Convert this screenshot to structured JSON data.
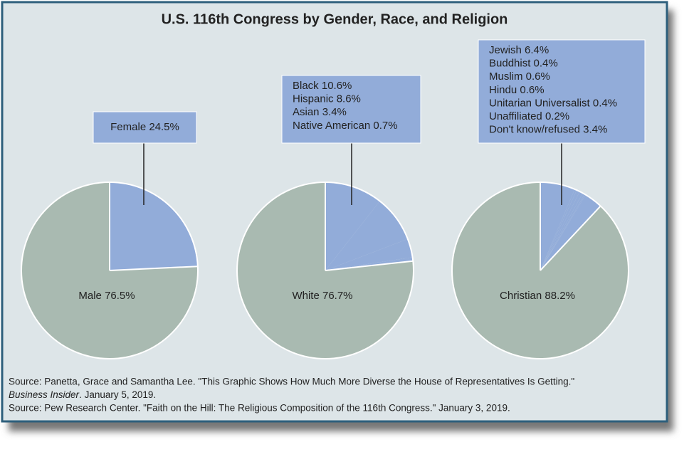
{
  "title": "U.S. 116th Congress by Gender, Race, and Religion",
  "chart_data": [
    {
      "type": "pie",
      "values": [
        24.5,
        76.5
      ],
      "value_labels": [
        "Female 24.5%",
        "Male 76.5%"
      ],
      "colors": [
        "#92acd9",
        "#a9bab1"
      ]
    },
    {
      "type": "pie",
      "values": [
        10.6,
        8.6,
        3.4,
        0.7,
        76.7
      ],
      "value_labels": [
        "Black 10.6%",
        "Hispanic 8.6%",
        "Asian 3.4%",
        "Native American 0.7%",
        "White 76.7%"
      ],
      "colors": [
        "#92acd9",
        "#92acd9",
        "#92acd9",
        "#92acd9",
        "#a9bab1"
      ]
    },
    {
      "type": "pie",
      "values": [
        6.4,
        0.4,
        0.6,
        0.6,
        0.4,
        0.2,
        3.4,
        88.2
      ],
      "value_labels": [
        "Jewish 6.4%",
        "Buddhist 0.4%",
        "Muslim 0.6%",
        "Hindu 0.6%",
        "Unitarian Universalist 0.4%",
        "Unaffiliated 0.2%",
        "Don't know/refused 3.4%",
        "Christian 88.2%"
      ],
      "colors": [
        "#92acd9",
        "#92acd9",
        "#92acd9",
        "#92acd9",
        "#92acd9",
        "#92acd9",
        "#92acd9",
        "#a9bab1"
      ]
    }
  ],
  "sources": [
    "Source: Panetta, Grace and Samantha Lee. \"This Graphic Shows How Much More Diverse the House of Representatives Is Getting.\"",
    [
      "Business Insider",
      ". January 5, 2019."
    ],
    "Source: Pew Research Center. \"Faith on the Hill: The Religious Composition of the 116th Congress.\" January 3, 2019."
  ]
}
